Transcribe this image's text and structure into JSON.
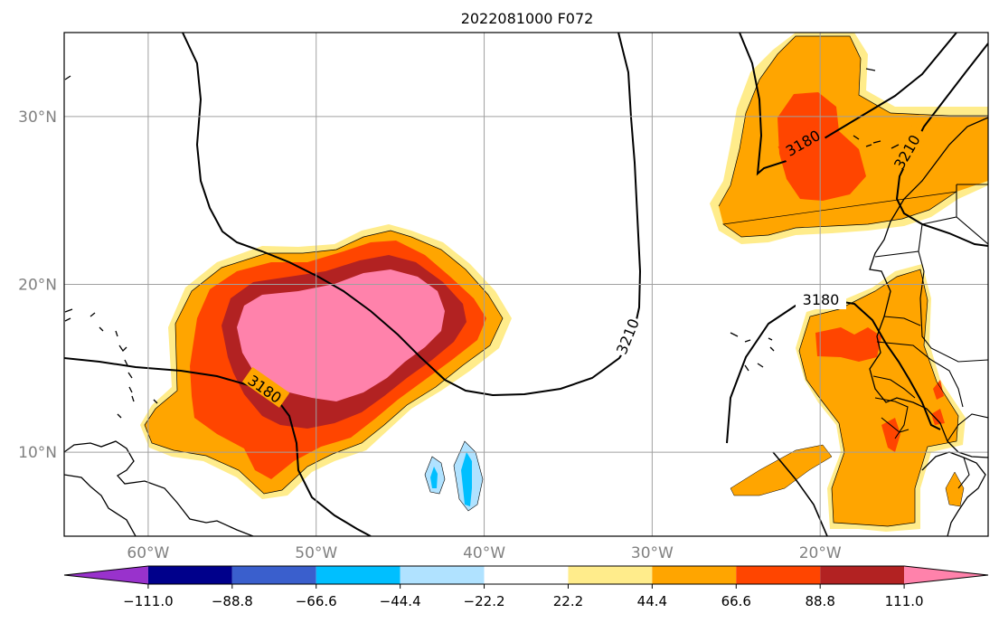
{
  "title": "2022081000 F072",
  "map": {
    "lon_range": [
      -65,
      -10
    ],
    "lat_range": [
      5,
      35
    ],
    "lon_ticks": [
      {
        "value": -60,
        "label": "60°W"
      },
      {
        "value": -50,
        "label": "50°W"
      },
      {
        "value": -40,
        "label": "40°W"
      },
      {
        "value": -30,
        "label": "30°W"
      },
      {
        "value": -20,
        "label": "20°W"
      }
    ],
    "lat_ticks": [
      {
        "value": 10,
        "label": "10°N"
      },
      {
        "value": 20,
        "label": "20°N"
      },
      {
        "value": 30,
        "label": "30°N"
      }
    ],
    "grid": true,
    "contour_labels": [
      "3180",
      "3210",
      "3180",
      "3210",
      "3180"
    ]
  },
  "colorbar": {
    "colors": [
      "#9932cc",
      "#00008b",
      "#3a5fcd",
      "#00bfff",
      "#b0e2ff",
      "#ffffff",
      "#ffec8b",
      "#ffa500",
      "#ff4500",
      "#b22222",
      "#ff82ab"
    ],
    "tick_labels": [
      "−111.0",
      "−88.8",
      "−66.6",
      "−44.4",
      "−22.2",
      "22.2",
      "44.4",
      "66.6",
      "88.8",
      "111.0"
    ],
    "extend": "both"
  }
}
